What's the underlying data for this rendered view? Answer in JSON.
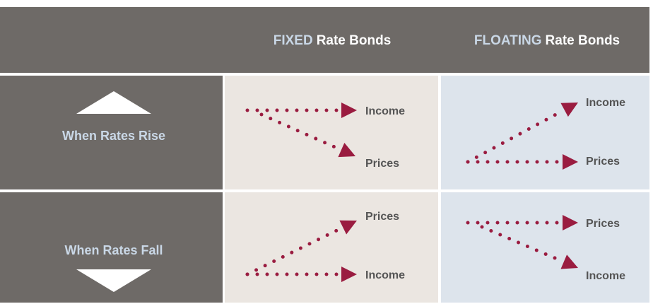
{
  "header": {
    "columns": [
      {
        "highlight": "FIXED",
        "rest": "Rate Bonds"
      },
      {
        "highlight": "FLOATING",
        "rest": "Rate Bonds"
      }
    ]
  },
  "rows": [
    {
      "label": "When Rates Rise",
      "cells": [
        {
          "top": "Income",
          "bottom": "Prices"
        },
        {
          "top": "Income",
          "bottom": "Prices"
        }
      ]
    },
    {
      "label": "When Rates Fall",
      "cells": [
        {
          "top": "Prices",
          "bottom": "Income"
        },
        {
          "top": "Prices",
          "bottom": "Income"
        }
      ]
    }
  ]
}
